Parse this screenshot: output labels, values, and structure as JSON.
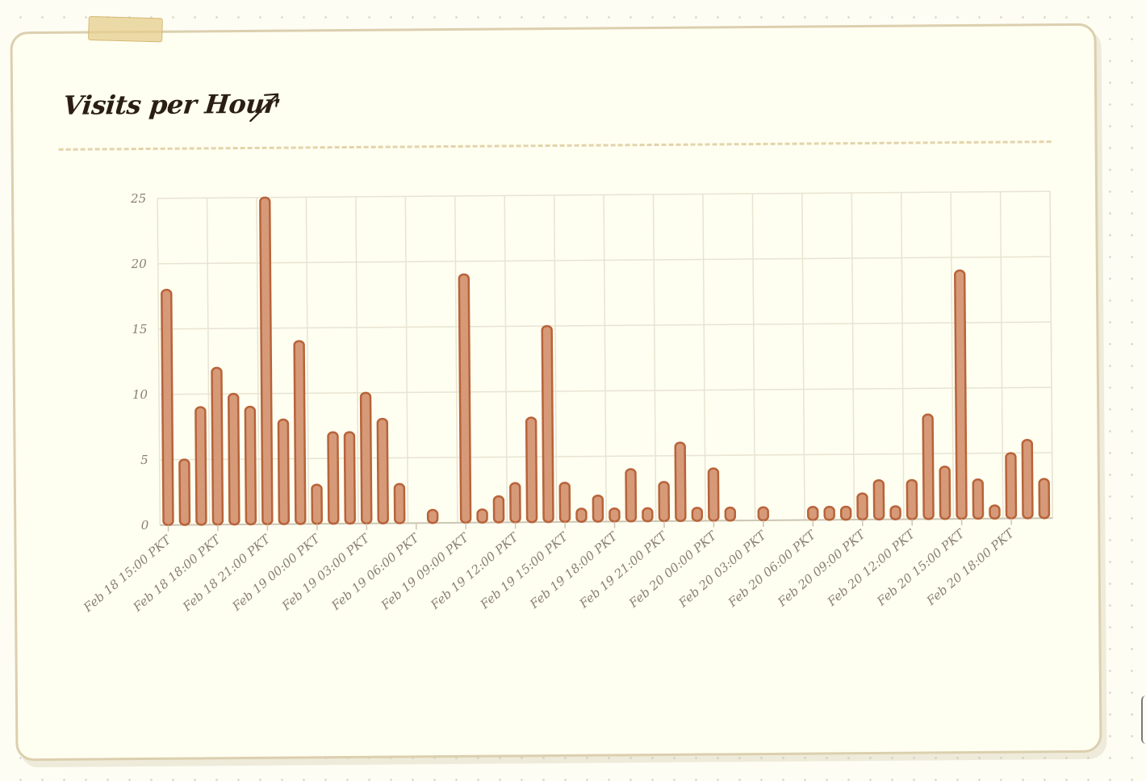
{
  "chart_data": {
    "type": "bar",
    "title": "Visits per Hour",
    "xlabel": "",
    "ylabel": "",
    "ylim": [
      0,
      25
    ],
    "yticks": [
      0,
      5,
      10,
      15,
      20,
      25
    ],
    "grid": true,
    "x_tick_labels": [
      "Feb 18 15:00 PKT",
      "Feb 18 18:00 PKT",
      "Feb 18 21:00 PKT",
      "Feb 19 00:00 PKT",
      "Feb 19 03:00 PKT",
      "Feb 19 06:00 PKT",
      "Feb 19 09:00 PKT",
      "Feb 19 12:00 PKT",
      "Feb 19 15:00 PKT",
      "Feb 19 18:00 PKT",
      "Feb 19 21:00 PKT",
      "Feb 20 00:00 PKT",
      "Feb 20 03:00 PKT",
      "Feb 20 06:00 PKT",
      "Feb 20 09:00 PKT",
      "Feb 20 12:00 PKT",
      "Feb 20 15:00 PKT",
      "Feb 20 18:00 PKT"
    ],
    "values": [
      18,
      5,
      9,
      12,
      10,
      9,
      25,
      8,
      14,
      3,
      7,
      7,
      10,
      8,
      3,
      0,
      1,
      0,
      19,
      1,
      2,
      3,
      8,
      15,
      3,
      1,
      2,
      1,
      4,
      1,
      3,
      6,
      1,
      4,
      1,
      0,
      1,
      0,
      0,
      1,
      1,
      1,
      2,
      3,
      1,
      3,
      8,
      4,
      19,
      3,
      1,
      5,
      6,
      3
    ]
  },
  "colors": {
    "bar_fill": "#d69a78",
    "bar_stroke": "#b8633a",
    "grid": "#e8e4d2",
    "axis": "#ccc6b4",
    "title": "#2a1e14"
  }
}
